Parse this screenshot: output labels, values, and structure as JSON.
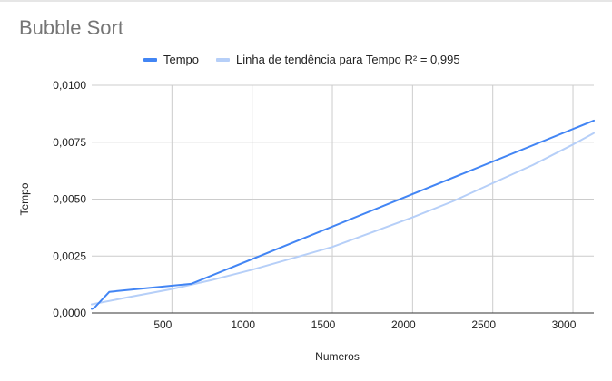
{
  "chart_data": {
    "type": "line",
    "title": "Bubble Sort",
    "xlabel": "Numeros",
    "ylabel": "Tempo",
    "xlim": [
      0,
      3130
    ],
    "ylim": [
      0,
      0.01
    ],
    "x_ticks": [
      500,
      1000,
      1500,
      2000,
      2500,
      3000
    ],
    "x_tick_labels": [
      "500",
      "1000",
      "1500",
      "2000",
      "2500",
      "3000"
    ],
    "y_ticks": [
      0,
      0.0025,
      0.005,
      0.0075,
      0.01
    ],
    "y_tick_labels": [
      "0,0000",
      "0,0025",
      "0,0050",
      "0,0075",
      "0,0100"
    ],
    "grid": true,
    "legend_position": "top",
    "series": [
      {
        "name": "Tempo",
        "color": "#4285f4",
        "x": [
          0,
          15,
          110,
          620,
          3130
        ],
        "y": [
          0.00018,
          0.00022,
          0.00093,
          0.00128,
          0.00845
        ]
      },
      {
        "name": "Linha de tendência para Tempo R² = 0,995",
        "color": "#b6cff8",
        "x": [
          0,
          250,
          500,
          750,
          1000,
          1250,
          1500,
          1750,
          2000,
          2250,
          2500,
          2750,
          3000,
          3130
        ],
        "y": [
          0.00038,
          0.00072,
          0.00105,
          0.00145,
          0.0019,
          0.0024,
          0.0029,
          0.00355,
          0.0042,
          0.0049,
          0.0057,
          0.0065,
          0.0074,
          0.0079
        ]
      }
    ]
  }
}
